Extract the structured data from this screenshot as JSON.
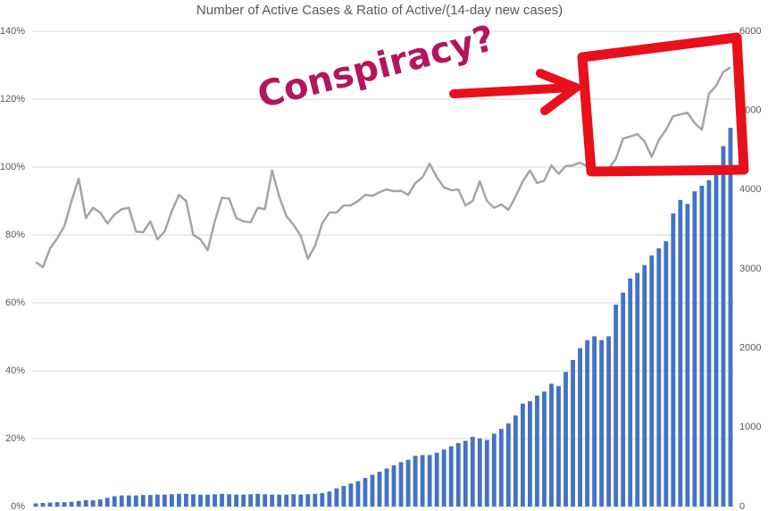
{
  "chart_data": {
    "type": "bar-line",
    "title": "Number of Active Cases & Ratio of Active/(14-day new cases)",
    "annotation": "Conspiracy?",
    "ylim": [
      0,
      140
    ],
    "yticks": [
      {
        "value": 0,
        "label": "0%"
      },
      {
        "value": 20,
        "label": "20%"
      },
      {
        "value": 40,
        "label": "40%"
      },
      {
        "value": 60,
        "label": "60%"
      },
      {
        "value": 80,
        "label": "80%"
      },
      {
        "value": 100,
        "label": "100%"
      },
      {
        "value": 120,
        "label": "120%"
      },
      {
        "value": 140,
        "label": "140%"
      }
    ],
    "y2lim": [
      0,
      6000
    ],
    "y2ticks": [
      0,
      1000,
      2000,
      3000,
      4000,
      5000,
      6000
    ],
    "grid": true,
    "series": [
      {
        "type": "bar",
        "axis": "y2",
        "color": "#4472c4",
        "values": [
          40,
          45,
          50,
          55,
          55,
          60,
          70,
          80,
          80,
          90,
          110,
          130,
          140,
          140,
          140,
          145,
          145,
          150,
          150,
          155,
          160,
          160,
          155,
          150,
          150,
          155,
          160,
          155,
          150,
          150,
          155,
          160,
          155,
          150,
          150,
          150,
          155,
          150,
          155,
          160,
          170,
          190,
          230,
          260,
          290,
          320,
          360,
          400,
          440,
          480,
          520,
          560,
          590,
          640,
          650,
          650,
          680,
          720,
          760,
          800,
          830,
          880,
          860,
          840,
          920,
          980,
          1050,
          1150,
          1300,
          1330,
          1400,
          1450,
          1550,
          1520,
          1700,
          1850,
          2000,
          2100,
          2150,
          2100,
          2150,
          2550,
          2700,
          2880,
          2950,
          3050,
          3170,
          3260,
          3350,
          3700,
          3870,
          3820,
          3980,
          4050,
          4120,
          4250,
          4550,
          4780
        ]
      },
      {
        "type": "line",
        "color": "#a5a5a5",
        "values": [
          72,
          70.5,
          76,
          79,
          82.6,
          90,
          96.6,
          85,
          88,
          86.6,
          83.4,
          86,
          87.6,
          88,
          81,
          80.8,
          84,
          78.7,
          81,
          87,
          91.8,
          90,
          80,
          78.7,
          75.5,
          84,
          91,
          90.7,
          85,
          84,
          83.7,
          88,
          87.6,
          99,
          91.3,
          85.5,
          83,
          79.7,
          73,
          76.8,
          83.4,
          86.6,
          86.6,
          88.7,
          88.7,
          90,
          91.8,
          91.5,
          92.6,
          93.4,
          92.9,
          93,
          91.8,
          95.3,
          97,
          101,
          97,
          94,
          93.2,
          93.4,
          88.7,
          90,
          95.8,
          90,
          88,
          89,
          87.4,
          91.3,
          95.8,
          99,
          95.3,
          96,
          100.5,
          98,
          100.3,
          100.5,
          101.3,
          100.2,
          98.4,
          98.6,
          99.6,
          102.4,
          108.4,
          109,
          109.7,
          107.6,
          103,
          108,
          111,
          115,
          115.5,
          116,
          112.9,
          111,
          121.6,
          124,
          128,
          129.4
        ]
      }
    ]
  }
}
